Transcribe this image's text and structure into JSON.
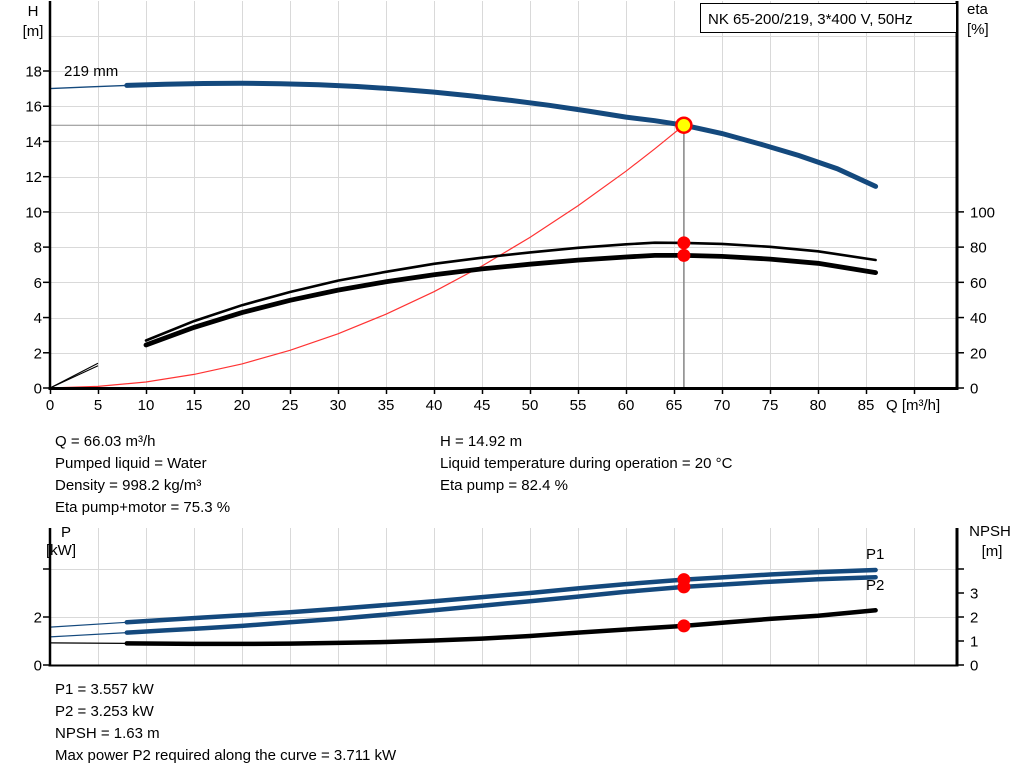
{
  "panel": {
    "background": "#FFFFFF"
  },
  "colors": {
    "curve_blue": "#14497D",
    "marker_red": "#FF0000",
    "system_curve_red": "#FF3333",
    "operating_point_yellow": "#FFFF00",
    "ref_line_gray": "#8C8C8C",
    "grid_gray": "#D9D9D9",
    "axis_black": "#000000"
  },
  "info_top_left": [
    "Q = 66.03 m³/h",
    "Pumped liquid = Water",
    "Density = 998.2 kg/m³",
    "Eta pump+motor = 75.3 %"
  ],
  "info_top_right": [
    "H = 14.92 m",
    "Liquid temperature during operation = 20 °C",
    "Eta pump = 82.4 %"
  ],
  "info_bottom": [
    "P1 = 3.557 kW",
    "P2 = 3.253 kW",
    "NPSH = 1.63 m",
    "Max power P2 required along the curve = 3.711 kW"
  ],
  "chart_data": [
    {
      "id": "qh-eta-chart",
      "type": "line",
      "title": "NK 65-200/219, 3*400 V, 50Hz",
      "xlabel": "Q [m³/h]",
      "ylabel_left": [
        "H",
        "[m]"
      ],
      "ylabel_right": [
        "eta",
        "[%]"
      ],
      "xlim": [
        0,
        94.5
      ],
      "ylim_left": [
        0,
        22
      ],
      "ylim_right": [
        0,
        124
      ],
      "x_tick_labels": [
        0,
        5,
        10,
        15,
        20,
        25,
        30,
        35,
        40,
        45,
        50,
        55,
        60,
        65,
        70,
        75,
        80,
        85
      ],
      "x_grid": [
        5,
        10,
        15,
        20,
        25,
        30,
        35,
        40,
        45,
        50,
        55,
        60,
        65,
        70,
        75,
        80,
        85,
        90
      ],
      "y_tick_labels_left": [
        0,
        2,
        4,
        6,
        8,
        10,
        12,
        14,
        16,
        18
      ],
      "y_grid_left": [
        2,
        4,
        6,
        8,
        10,
        12,
        14,
        16,
        18,
        20
      ],
      "y_tick_labels_right": [
        0,
        20,
        40,
        60,
        80,
        100
      ],
      "curve_label": {
        "text": "219 mm"
      },
      "operating_point": {
        "q": 66.03,
        "h": 14.92
      },
      "eta_markers": [
        {
          "name": "eta-pump-marker",
          "q": 66.03,
          "eta": 82.4
        },
        {
          "name": "eta-pump-motor-marker",
          "q": 66.03,
          "eta": 75.3
        }
      ],
      "series": [
        {
          "name": "system-curve",
          "axis": "h",
          "color": "#FF3333",
          "width": 1.2,
          "points": [
            [
              0,
              0
            ],
            [
              5,
              0.09
            ],
            [
              10,
              0.34
            ],
            [
              15,
              0.77
            ],
            [
              20,
              1.37
            ],
            [
              25,
              2.14
            ],
            [
              30,
              3.08
            ],
            [
              35,
              4.19
            ],
            [
              40,
              5.47
            ],
            [
              45,
              6.93
            ],
            [
              50,
              8.55
            ],
            [
              55,
              10.35
            ],
            [
              60,
              12.31
            ],
            [
              63,
              13.58
            ],
            [
              66.03,
              14.92
            ]
          ]
        },
        {
          "name": "eta-pump-curve",
          "axis": "eta",
          "color": "#000000",
          "width": 2.6,
          "lead_width": 1.1,
          "split_q": 8,
          "points": [
            [
              0,
              0
            ],
            [
              5,
              14
            ],
            [
              10,
              27
            ],
            [
              15,
              38
            ],
            [
              20,
              47
            ],
            [
              25,
              54.5
            ],
            [
              30,
              61
            ],
            [
              35,
              66
            ],
            [
              40,
              70.5
            ],
            [
              45,
              74
            ],
            [
              50,
              77
            ],
            [
              55,
              79.6
            ],
            [
              60,
              81.6
            ],
            [
              63,
              82.5
            ],
            [
              66.03,
              82.4
            ],
            [
              70,
              81.8
            ],
            [
              75,
              80.2
            ],
            [
              80,
              77.6
            ],
            [
              86,
              72.7
            ]
          ]
        },
        {
          "name": "eta-pump-motor-curve",
          "axis": "eta",
          "color": "#000000",
          "width": 4.8,
          "lead_width": 1.1,
          "split_q": 8,
          "points": [
            [
              0,
              0
            ],
            [
              5,
              12.6
            ],
            [
              10,
              24.4
            ],
            [
              15,
              34.4
            ],
            [
              20,
              42.8
            ],
            [
              25,
              49.8
            ],
            [
              30,
              55.6
            ],
            [
              35,
              60.3
            ],
            [
              40,
              64.3
            ],
            [
              45,
              67.6
            ],
            [
              50,
              70.3
            ],
            [
              55,
              72.6
            ],
            [
              60,
              74.4
            ],
            [
              63,
              75.3
            ],
            [
              66.03,
              75.3
            ],
            [
              70,
              74.7
            ],
            [
              75,
              73.2
            ],
            [
              80,
              70.8
            ],
            [
              86,
              65.5
            ]
          ]
        },
        {
          "name": "qh-curve-219mm",
          "axis": "h",
          "color": "#14497D",
          "width": 5,
          "lead_width": 1.4,
          "split_q": 8,
          "points": [
            [
              0,
              17.0
            ],
            [
              4,
              17.1
            ],
            [
              8,
              17.18
            ],
            [
              12,
              17.25
            ],
            [
              16,
              17.29
            ],
            [
              20,
              17.3
            ],
            [
              24,
              17.28
            ],
            [
              28,
              17.22
            ],
            [
              32,
              17.12
            ],
            [
              36,
              16.98
            ],
            [
              40,
              16.8
            ],
            [
              44,
              16.58
            ],
            [
              48,
              16.33
            ],
            [
              52,
              16.05
            ],
            [
              56,
              15.73
            ],
            [
              60,
              15.38
            ],
            [
              63,
              15.18
            ],
            [
              66.03,
              14.92
            ],
            [
              70,
              14.45
            ],
            [
              74,
              13.85
            ],
            [
              78,
              13.2
            ],
            [
              82,
              12.45
            ],
            [
              86,
              11.45
            ]
          ]
        }
      ]
    },
    {
      "id": "power-npsh-chart",
      "type": "line",
      "ylabel_left": [
        "P",
        "[kW]"
      ],
      "ylabel_right": [
        "NPSH",
        "[m]"
      ],
      "xlim": [
        0,
        94.5
      ],
      "ylim": [
        0,
        5.7
      ],
      "x_grid": [
        5,
        10,
        15,
        20,
        25,
        30,
        35,
        40,
        45,
        50,
        55,
        60,
        65,
        70,
        75,
        80,
        85,
        90
      ],
      "y_ticks_left": [
        {
          "value": 0,
          "label": "0"
        },
        {
          "value": 2,
          "label": "2"
        },
        {
          "value": 4,
          "label": ""
        }
      ],
      "y_grid": [
        2,
        4
      ],
      "y_ticks_right": [
        {
          "value": 0,
          "label": "0"
        },
        {
          "value": 1,
          "label": "1"
        },
        {
          "value": 2,
          "label": "2"
        },
        {
          "value": 3,
          "label": "3"
        },
        {
          "value": 4,
          "label": ""
        }
      ],
      "markers": [
        {
          "name": "p1-marker",
          "q": 66.03,
          "value": 3.557
        },
        {
          "name": "p2-marker",
          "q": 66.03,
          "value": 3.253
        },
        {
          "name": "npsh-marker",
          "q": 66.03,
          "value": 1.63
        }
      ],
      "series": [
        {
          "name": "p1-curve",
          "label": "P1",
          "color": "#14497D",
          "width": 4.5,
          "lead_width": 1.2,
          "split_q": 8,
          "points": [
            [
              0,
              1.58
            ],
            [
              8,
              1.78
            ],
            [
              12,
              1.88
            ],
            [
              16,
              1.98
            ],
            [
              20,
              2.07
            ],
            [
              25,
              2.2
            ],
            [
              30,
              2.34
            ],
            [
              35,
              2.5
            ],
            [
              40,
              2.66
            ],
            [
              45,
              2.83
            ],
            [
              50,
              3.0
            ],
            [
              55,
              3.19
            ],
            [
              60,
              3.37
            ],
            [
              66.03,
              3.557
            ],
            [
              70,
              3.65
            ],
            [
              75,
              3.77
            ],
            [
              80,
              3.87
            ],
            [
              86,
              3.96
            ]
          ]
        },
        {
          "name": "p2-curve",
          "label": "P2",
          "color": "#14497D",
          "width": 4.5,
          "lead_width": 1.2,
          "split_q": 8,
          "points": [
            [
              0,
              1.17
            ],
            [
              8,
              1.35
            ],
            [
              12,
              1.44
            ],
            [
              16,
              1.53
            ],
            [
              20,
              1.63
            ],
            [
              25,
              1.78
            ],
            [
              30,
              1.93
            ],
            [
              35,
              2.1
            ],
            [
              40,
              2.28
            ],
            [
              45,
              2.47
            ],
            [
              50,
              2.66
            ],
            [
              55,
              2.85
            ],
            [
              60,
              3.05
            ],
            [
              66.03,
              3.253
            ],
            [
              70,
              3.35
            ],
            [
              75,
              3.47
            ],
            [
              80,
              3.57
            ],
            [
              86,
              3.66
            ]
          ]
        },
        {
          "name": "npsh-curve",
          "label": "",
          "color": "#000000",
          "width": 4.5,
          "lead_width": 1.2,
          "split_q": 8,
          "points": [
            [
              0,
              0.92
            ],
            [
              8,
              0.9
            ],
            [
              15,
              0.88
            ],
            [
              20,
              0.88
            ],
            [
              25,
              0.89
            ],
            [
              30,
              0.92
            ],
            [
              35,
              0.96
            ],
            [
              40,
              1.02
            ],
            [
              45,
              1.1
            ],
            [
              50,
              1.21
            ],
            [
              55,
              1.35
            ],
            [
              60,
              1.48
            ],
            [
              66.03,
              1.63
            ],
            [
              70,
              1.76
            ],
            [
              75,
              1.92
            ],
            [
              80,
              2.05
            ],
            [
              86,
              2.28
            ]
          ]
        }
      ]
    }
  ]
}
